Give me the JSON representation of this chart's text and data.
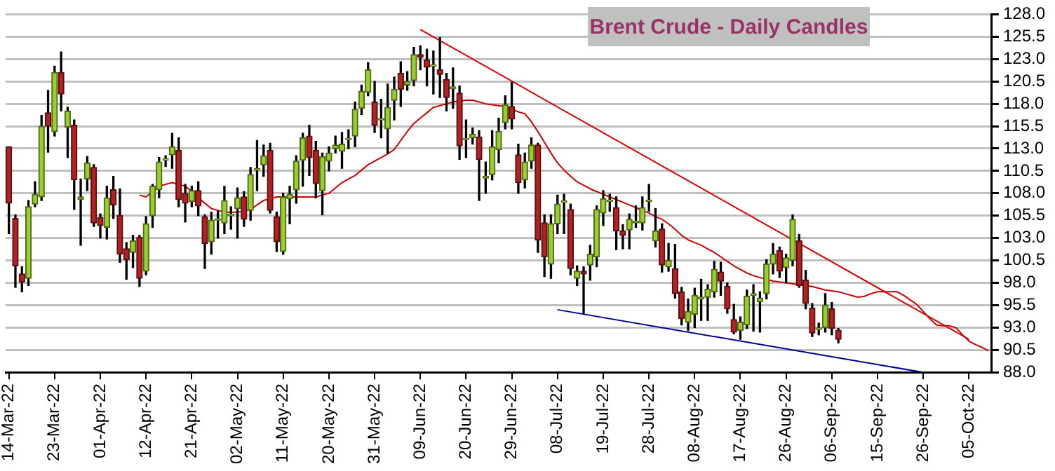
{
  "chart_data": {
    "type": "candlestick",
    "title": "Brent Crude - Daily Candles",
    "categories": [
      "14-Mar-22",
      null,
      null,
      null,
      null,
      null,
      null,
      "23-Mar-22",
      null,
      null,
      null,
      null,
      null,
      null,
      "01-Apr-22",
      null,
      null,
      null,
      null,
      null,
      null,
      "12-Apr-22",
      null,
      null,
      null,
      null,
      null,
      null,
      "21-Apr-22",
      null,
      null,
      null,
      null,
      null,
      null,
      "02-May-22",
      null,
      null,
      null,
      null,
      null,
      null,
      "11-May-22",
      null,
      null,
      null,
      null,
      null,
      null,
      "20-May-22",
      null,
      null,
      null,
      null,
      null,
      null,
      "31-May-22",
      null,
      null,
      null,
      null,
      null,
      null,
      "09-Jun-22",
      null,
      null,
      null,
      null,
      null,
      null,
      "20-Jun-22",
      null,
      null,
      null,
      null,
      null,
      null,
      "29-Jun-22",
      null,
      null,
      null,
      null,
      null,
      null,
      "08-Jul-22",
      null,
      null,
      null,
      null,
      null,
      null,
      "19-Jul-22",
      null,
      null,
      null,
      null,
      null,
      null,
      "28-Jul-22",
      null,
      null,
      null,
      null,
      null,
      null,
      "08-Aug-22",
      null,
      null,
      null,
      null,
      null,
      null,
      "17-Aug-22",
      null,
      null,
      null,
      null,
      null,
      null,
      "26-Aug-22",
      null,
      null,
      null,
      null,
      null,
      null,
      "06-Sep-22",
      null,
      null,
      null,
      null,
      null,
      null,
      "15-Sep-22",
      null,
      null,
      null,
      null,
      null,
      null,
      "26-Sep-22",
      null,
      null,
      null,
      null,
      null,
      null,
      "05-Oct-22",
      null,
      null,
      null
    ],
    "ohlc": [
      [
        113.2,
        113.2,
        103.5,
        106.9
      ],
      [
        105.2,
        105.6,
        97.5,
        99.9
      ],
      [
        99.0,
        99.8,
        97.0,
        98.1
      ],
      [
        98.5,
        107.2,
        97.7,
        106.5
      ],
      [
        106.8,
        109.3,
        106.5,
        107.9
      ],
      [
        107.6,
        116.7,
        107.2,
        115.5
      ],
      [
        117.0,
        119.5,
        112.6,
        115.5
      ],
      [
        114.9,
        122.2,
        114.4,
        121.5
      ],
      [
        121.5,
        123.8,
        117.2,
        119.1
      ],
      [
        115.4,
        117.6,
        112.0,
        117.2
      ],
      [
        115.6,
        116.2,
        106.2,
        109.5
      ],
      [
        107.3,
        109.6,
        102.2,
        107.6
      ],
      [
        109.6,
        112.1,
        108.3,
        111.4
      ],
      [
        110.9,
        111.2,
        104.3,
        104.7
      ],
      [
        105.3,
        105.7,
        103.0,
        104.4
      ],
      [
        104.2,
        108.8,
        102.9,
        107.5
      ],
      [
        108.4,
        109.9,
        105.2,
        106.7
      ],
      [
        105.5,
        108.5,
        100.3,
        101.2
      ],
      [
        101.8,
        102.5,
        98.4,
        100.6
      ],
      [
        101.4,
        103.3,
        99.7,
        102.7
      ],
      [
        103.1,
        103.3,
        97.6,
        98.5
      ],
      [
        99.3,
        105.4,
        98.9,
        104.6
      ],
      [
        105.5,
        109.0,
        104.2,
        108.8
      ],
      [
        108.4,
        112.0,
        107.5,
        111.5
      ],
      [
        111.7,
        112.2,
        111.0,
        111.7
      ],
      [
        112.3,
        114.7,
        110.8,
        113.2
      ],
      [
        112.8,
        114.2,
        106.5,
        107.3
      ],
      [
        108.0,
        109.0,
        104.8,
        106.9
      ],
      [
        107.1,
        108.8,
        106.5,
        108.3
      ],
      [
        108.3,
        109.3,
        105.5,
        106.6
      ],
      [
        105.4,
        105.6,
        99.6,
        102.4
      ],
      [
        102.6,
        105.9,
        101.2,
        105.0
      ],
      [
        105.0,
        106.0,
        103.0,
        105.0
      ],
      [
        104.7,
        108.8,
        103.5,
        107.2
      ],
      [
        105.5,
        106.5,
        104.0,
        105.5
      ],
      [
        106.3,
        108.6,
        103.0,
        107.5
      ],
      [
        107.6,
        108.2,
        104.3,
        105.1
      ],
      [
        106.1,
        110.9,
        105.0,
        110.1
      ],
      [
        110.6,
        113.9,
        108.3,
        110.6
      ],
      [
        111.2,
        113.4,
        109.9,
        112.2
      ],
      [
        112.8,
        113.6,
        105.8,
        106.1
      ],
      [
        105.4,
        105.9,
        101.5,
        102.6
      ],
      [
        101.5,
        108.0,
        101.2,
        107.6
      ],
      [
        107.4,
        108.8,
        104.6,
        107.9
      ],
      [
        108.4,
        112.2,
        106.9,
        111.6
      ],
      [
        111.7,
        114.7,
        108.8,
        114.2
      ],
      [
        114.4,
        115.6,
        110.0,
        112.0
      ],
      [
        112.8,
        113.8,
        107.5,
        109.1
      ],
      [
        108.3,
        112.5,
        105.6,
        112.1
      ],
      [
        111.6,
        113.2,
        110.5,
        112.5
      ],
      [
        113.0,
        114.4,
        112.5,
        113.4
      ],
      [
        112.7,
        114.8,
        110.8,
        113.5
      ],
      [
        114.0,
        115.1,
        113.0,
        114.0
      ],
      [
        114.4,
        118.2,
        113.2,
        117.4
      ],
      [
        117.5,
        120.1,
        116.8,
        119.4
      ],
      [
        119.3,
        122.6,
        118.9,
        121.8
      ],
      [
        118.2,
        120.5,
        114.8,
        115.6
      ],
      [
        116.2,
        118.5,
        114.2,
        116.3
      ],
      [
        115.2,
        120.2,
        112.5,
        117.6
      ],
      [
        118.4,
        121.0,
        116.2,
        119.6
      ],
      [
        121.4,
        122.7,
        117.7,
        119.6
      ],
      [
        120.1,
        121.6,
        119.5,
        120.5
      ],
      [
        120.6,
        124.3,
        120.0,
        123.5
      ],
      [
        123.5,
        124.5,
        121.8,
        123.2
      ],
      [
        122.9,
        124.1,
        120.0,
        122.1
      ],
      [
        122.2,
        123.9,
        119.1,
        122.2
      ],
      [
        121.8,
        125.4,
        118.7,
        121.3
      ],
      [
        120.7,
        121.4,
        117.2,
        118.7
      ],
      [
        119.7,
        122.0,
        117.5,
        119.9
      ],
      [
        119.2,
        120.0,
        111.8,
        113.3
      ],
      [
        114.0,
        116.2,
        112.0,
        114.0
      ],
      [
        114.2,
        115.3,
        113.5,
        114.6
      ],
      [
        114.3,
        115.0,
        107.2,
        111.8
      ],
      [
        109.7,
        111.5,
        108.0,
        109.9
      ],
      [
        110.1,
        115.0,
        109.5,
        113.2
      ],
      [
        112.9,
        116.4,
        111.4,
        114.9
      ],
      [
        115.9,
        118.9,
        115.2,
        117.9
      ],
      [
        117.7,
        120.4,
        115.2,
        116.3
      ],
      [
        112.3,
        113.5,
        108.0,
        109.2
      ],
      [
        109.5,
        112.5,
        108.6,
        111.5
      ],
      [
        111.6,
        114.2,
        110.8,
        113.4
      ],
      [
        113.4,
        113.6,
        101.4,
        102.8
      ],
      [
        104.7,
        105.6,
        98.7,
        100.9
      ],
      [
        100.1,
        105.6,
        98.5,
        104.6
      ],
      [
        104.6,
        107.8,
        103.5,
        106.8
      ],
      [
        107.0,
        107.9,
        103.5,
        107.1
      ],
      [
        106.2,
        106.8,
        98.9,
        99.6
      ],
      [
        98.5,
        99.9,
        97.7,
        99.3
      ],
      [
        99.3,
        99.8,
        94.6,
        99.0
      ],
      [
        100.0,
        102.2,
        98.3,
        101.2
      ],
      [
        100.9,
        106.6,
        99.8,
        106.2
      ],
      [
        105.8,
        108.3,
        104.4,
        107.4
      ],
      [
        107.1,
        107.9,
        106.0,
        107.2
      ],
      [
        106.4,
        107.6,
        101.7,
        103.8
      ],
      [
        103.8,
        104.5,
        101.8,
        103.3
      ],
      [
        103.9,
        105.7,
        101.8,
        105.1
      ],
      [
        104.7,
        106.6,
        104.2,
        104.9
      ],
      [
        104.7,
        107.6,
        103.9,
        106.4
      ],
      [
        107.1,
        109.0,
        106.0,
        107.2
      ],
      [
        102.7,
        106.3,
        102.0,
        103.8
      ],
      [
        104.0,
        104.6,
        99.2,
        100.0
      ],
      [
        99.8,
        102.4,
        99.3,
        100.5
      ],
      [
        99.6,
        102.3,
        96.3,
        96.8
      ],
      [
        97.0,
        97.5,
        93.3,
        94.0
      ],
      [
        93.6,
        96.2,
        92.7,
        94.8
      ],
      [
        94.5,
        97.4,
        93.0,
        96.6
      ],
      [
        96.2,
        98.4,
        93.8,
        96.4
      ],
      [
        96.4,
        97.8,
        93.8,
        97.3
      ],
      [
        97.0,
        100.4,
        96.4,
        99.5
      ],
      [
        99.2,
        100.3,
        96.6,
        98.2
      ],
      [
        97.6,
        98.0,
        94.6,
        95.1
      ],
      [
        93.9,
        95.6,
        92.3,
        92.5
      ],
      [
        92.7,
        94.2,
        91.7,
        93.6
      ],
      [
        93.3,
        97.2,
        92.9,
        96.5
      ],
      [
        96.6,
        97.8,
        92.6,
        96.8
      ],
      [
        95.9,
        97.0,
        92.5,
        96.3
      ],
      [
        96.8,
        100.6,
        96.2,
        100.1
      ],
      [
        100.1,
        102.4,
        99.0,
        101.2
      ],
      [
        101.6,
        102.0,
        98.6,
        99.3
      ],
      [
        99.7,
        101.2,
        98.0,
        100.8
      ],
      [
        100.5,
        105.6,
        99.9,
        105.1
      ],
      [
        102.7,
        103.4,
        97.5,
        97.7
      ],
      [
        98.3,
        99.4,
        95.1,
        95.7
      ],
      [
        95.2,
        95.7,
        92.0,
        92.4
      ],
      [
        92.8,
        93.5,
        92.2,
        92.9
      ],
      [
        93.0,
        96.8,
        92.5,
        95.5
      ],
      [
        95.1,
        95.8,
        92.2,
        92.9
      ],
      [
        92.7,
        92.9,
        91.3,
        91.7
      ],
      null,
      null,
      null,
      null,
      null,
      null,
      null,
      null,
      null,
      null,
      null,
      null,
      null,
      null,
      null,
      null,
      null,
      null,
      null,
      null,
      null,
      null,
      null
    ],
    "series": [
      {
        "type": "line",
        "color": "#cc0000",
        "values": [
          null,
          null,
          null,
          null,
          null,
          null,
          null,
          null,
          null,
          null,
          null,
          null,
          null,
          null,
          null,
          null,
          null,
          null,
          null,
          null,
          107.8,
          107.6,
          108.2,
          108.8,
          109.0,
          109.2,
          109.0,
          108.8,
          108.2,
          107.5,
          106.9,
          106.3,
          106.1,
          105.9,
          105.9,
          105.9,
          106.0,
          106.2,
          106.7,
          107.2,
          107.4,
          107.6,
          107.6,
          107.6,
          107.6,
          107.6,
          107.6,
          107.6,
          107.8,
          108.0,
          108.6,
          109.2,
          109.6,
          110.0,
          110.6,
          111.2,
          111.6,
          112.0,
          112.4,
          112.9,
          113.9,
          114.9,
          115.8,
          116.4,
          117.0,
          117.6,
          117.8,
          118.0,
          118.2,
          118.3,
          118.4,
          118.4,
          118.2,
          118.0,
          117.9,
          117.8,
          117.7,
          117.4,
          117.1,
          116.9,
          116.0,
          114.9,
          113.7,
          112.5,
          111.4,
          110.6,
          109.9,
          109.3,
          108.9,
          108.5,
          108.2,
          107.9,
          107.6,
          107.3,
          107.0,
          106.7,
          106.4,
          106.1,
          105.8,
          105.4,
          105.1,
          104.6,
          104.0,
          103.3,
          102.8,
          102.5,
          102.2,
          101.8,
          101.4,
          100.9,
          100.4,
          99.9,
          99.5,
          99.1,
          98.8,
          98.6,
          98.4,
          98.2,
          98.1,
          98.0,
          97.9,
          97.8,
          97.7,
          97.6,
          97.4,
          97.2,
          97.1,
          97.0,
          96.8,
          96.6,
          96.4,
          96.5,
          96.8,
          97.0,
          97.0,
          97.0,
          97.0,
          96.6,
          96.1,
          95.6,
          94.8,
          94.0,
          93.3,
          93.2,
          93.2,
          93.0,
          92.2,
          91.5,
          91.1,
          90.8,
          90.4
        ]
      },
      {
        "type": "line",
        "color": "#dd0000",
        "x": [
          "09-Jun-22",
          "05-Oct-22"
        ],
        "values": [
          126.3,
          91.7
        ]
      },
      {
        "type": "line",
        "color": "#000099",
        "x": [
          "08-Jul-22",
          "26-Sep-22"
        ],
        "values": [
          95.0,
          88.0
        ]
      }
    ],
    "ylim": [
      88,
      128
    ],
    "yticks": [
      {
        "value": 88,
        "label": "88.0"
      },
      {
        "value": 90.5,
        "label": "90.5"
      },
      {
        "value": 93,
        "label": "93.0"
      },
      {
        "value": 95.5,
        "label": "95.5"
      },
      {
        "value": 98,
        "label": "98.0"
      },
      {
        "value": 100.5,
        "label": "100.5"
      },
      {
        "value": 103,
        "label": "103.0"
      },
      {
        "value": 105.5,
        "label": "105.5"
      },
      {
        "value": 108,
        "label": "108.0"
      },
      {
        "value": 110.5,
        "label": "110.5"
      },
      {
        "value": 113,
        "label": "113.0"
      },
      {
        "value": 115.5,
        "label": "115.5"
      },
      {
        "value": 118,
        "label": "118.0"
      },
      {
        "value": 120.5,
        "label": "120.5"
      },
      {
        "value": 123,
        "label": "123.0"
      },
      {
        "value": 125.5,
        "label": "125.5"
      },
      {
        "value": 128,
        "label": "128.0"
      }
    ],
    "grid": "y",
    "legend": false
  }
}
